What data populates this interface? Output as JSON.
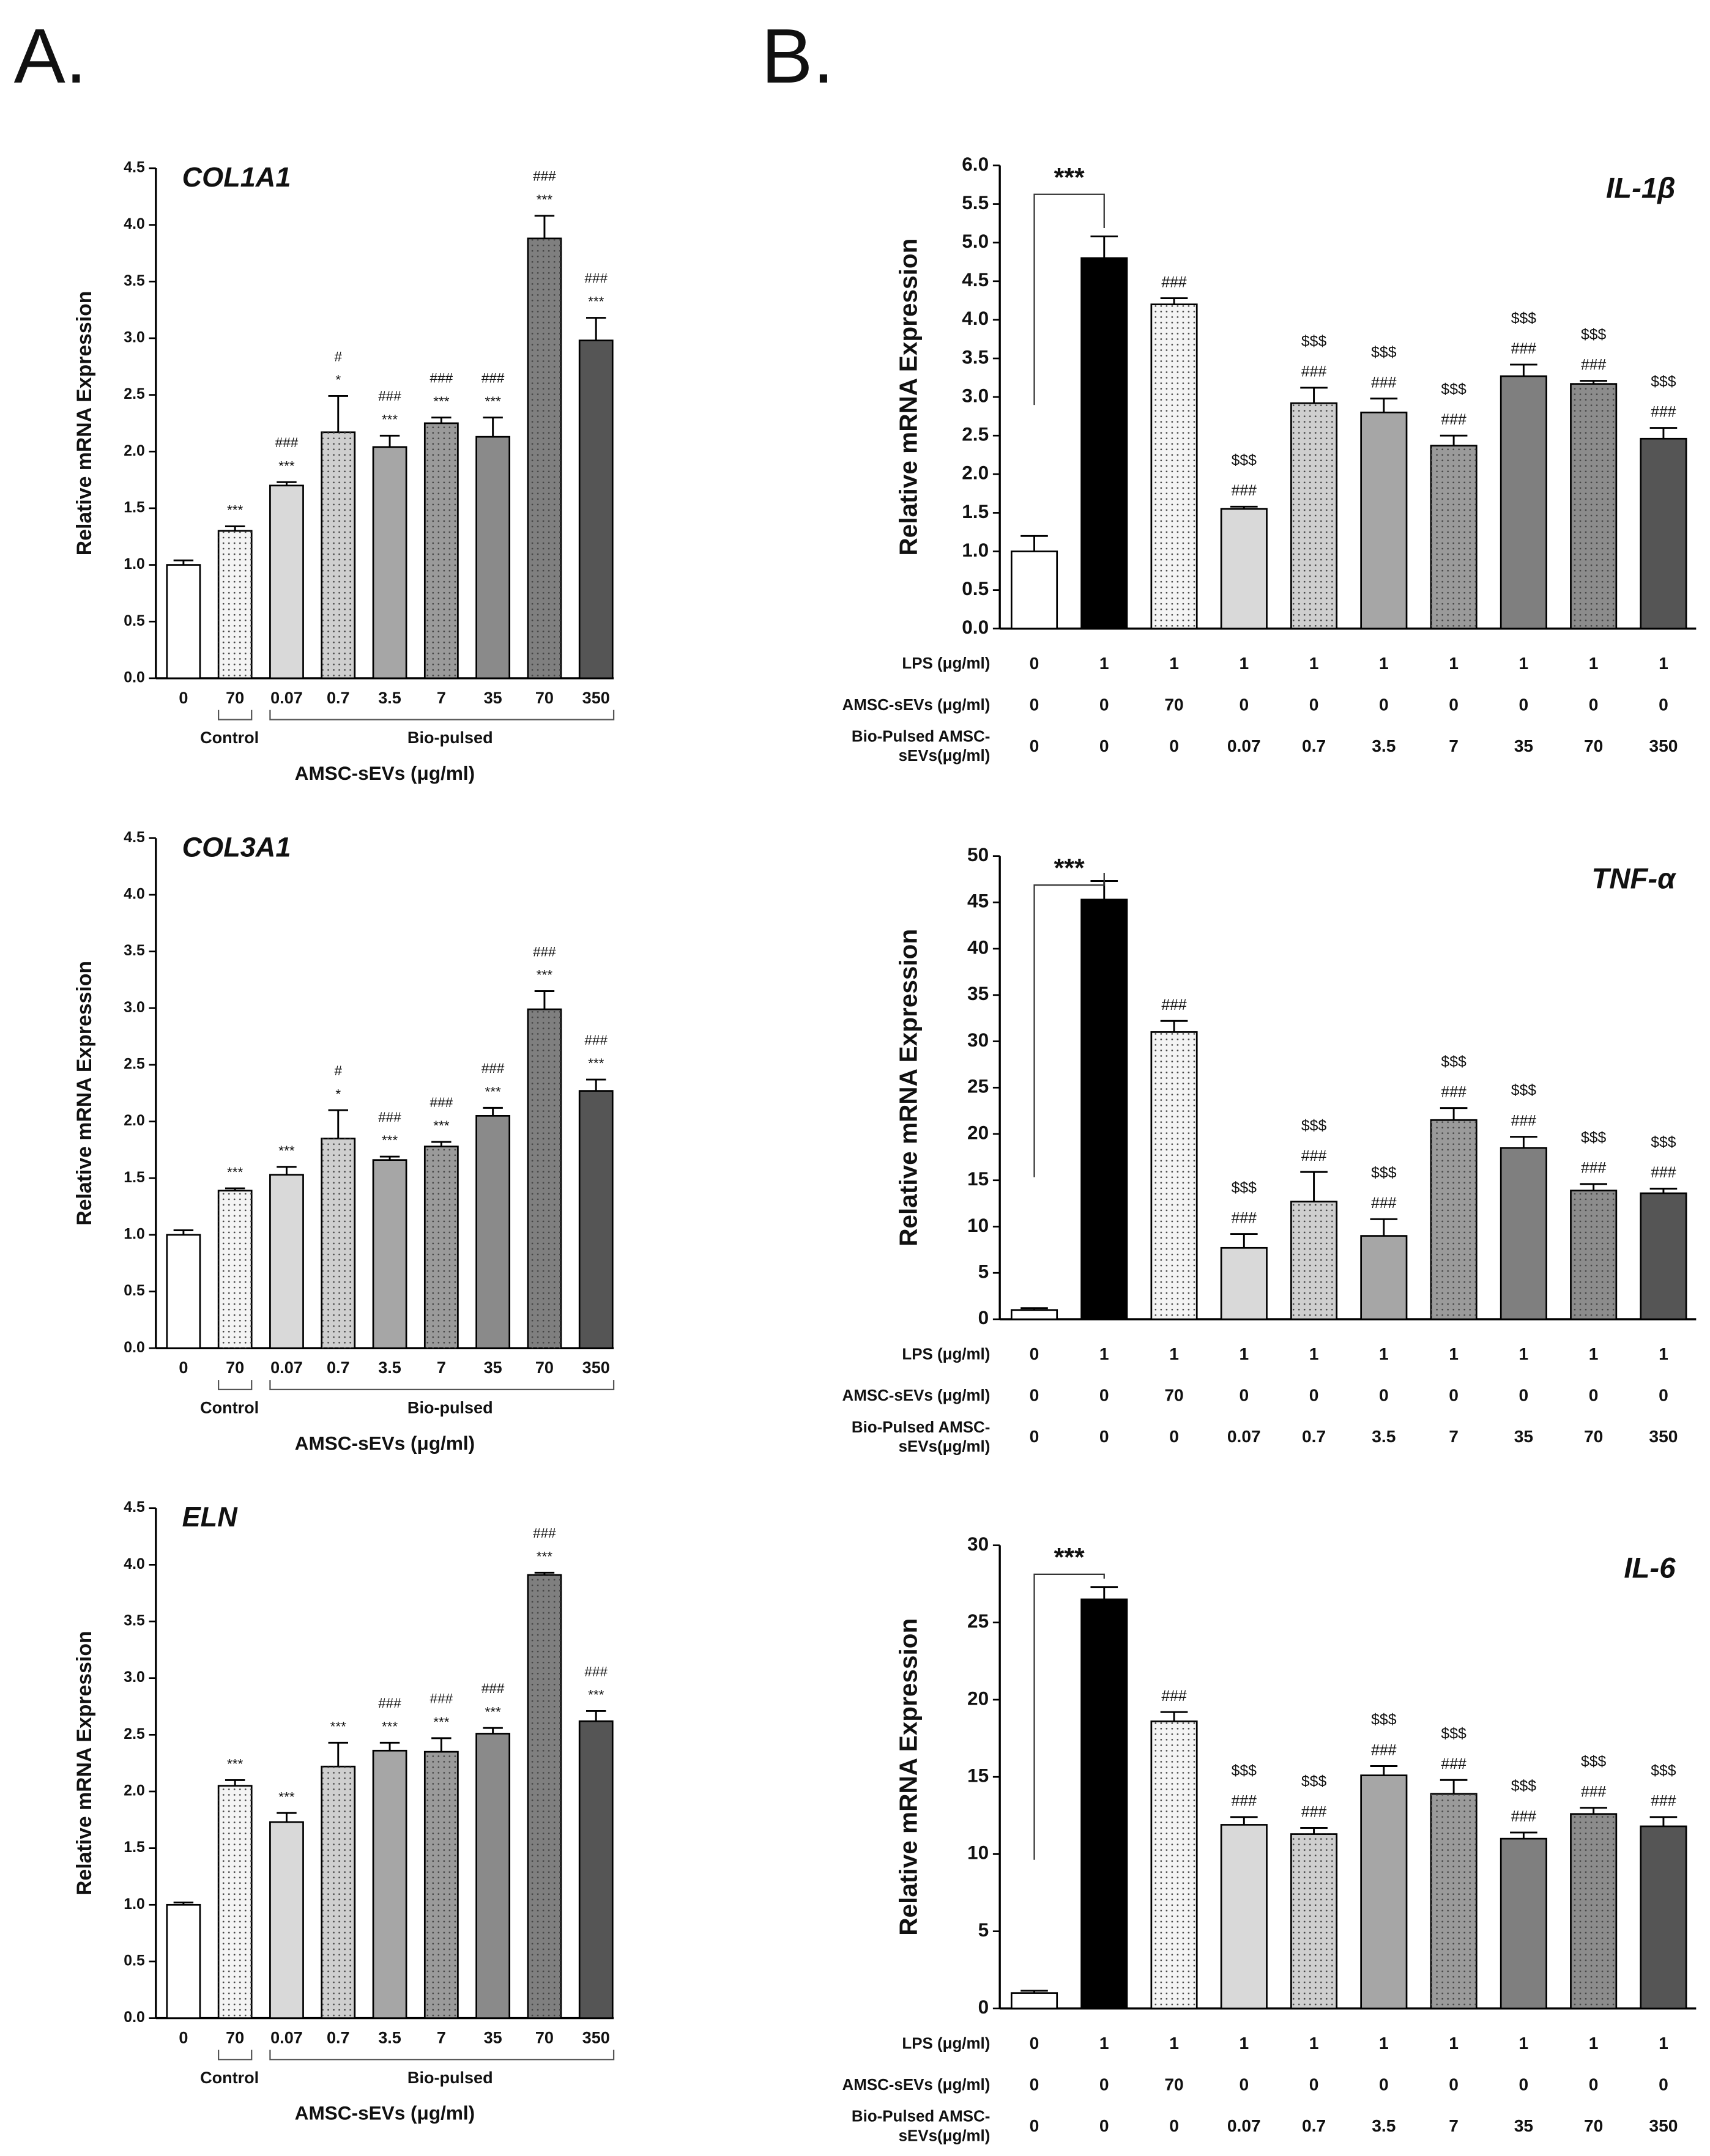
{
  "panel_labels": [
    "A.",
    "B."
  ],
  "chart_data": [
    {
      "type": "bar",
      "title": "COL1A1",
      "ylabel": "Relative mRNA Expression",
      "xlabel": "AMSC-sEVs (μg/ml)",
      "group_labels": [
        "Control",
        "Bio-pulsed"
      ],
      "categories": [
        "0",
        "70",
        "0.07",
        "0.7",
        "3.5",
        "7",
        "35",
        "70",
        "350"
      ],
      "values": [
        1.0,
        1.3,
        1.7,
        2.17,
        2.04,
        2.25,
        2.13,
        3.88,
        2.98
      ],
      "errors": [
        0.04,
        0.04,
        0.03,
        0.32,
        0.1,
        0.05,
        0.17,
        0.2,
        0.2
      ],
      "annotations": [
        [],
        [
          "***"
        ],
        [
          "###",
          "***"
        ],
        [
          "#",
          "*"
        ],
        [
          "###",
          "***"
        ],
        [
          "###",
          "***"
        ],
        [
          "###",
          "***"
        ],
        [
          "###",
          "***"
        ],
        [
          "###",
          "***"
        ]
      ],
      "colors": [
        "#ffffff",
        "#f4f4f4",
        "#d9d9d9",
        "#cfcfcf",
        "#a6a6a6",
        "#9a9a9a",
        "#8a8a8a",
        "#7f7f7f",
        "#555555"
      ],
      "patterns": [
        "solid",
        "dots",
        "solid",
        "dots",
        "solid",
        "dots",
        "solid",
        "dots",
        "solid"
      ],
      "ylim": [
        0,
        4.5
      ],
      "yticks": [
        {
          "value": 0,
          "label": "0.0"
        },
        0.5,
        {
          "value": 1,
          "label": "1.0"
        },
        1.5,
        {
          "value": 2,
          "label": "2.0"
        },
        2.5,
        {
          "value": 3,
          "label": "3.0"
        },
        3.5,
        {
          "value": 4,
          "label": "4.0"
        },
        4.5
      ]
    },
    {
      "type": "bar",
      "title": "COL3A1",
      "ylabel": "Relative mRNA Expression",
      "xlabel": "AMSC-sEVs (μg/ml)",
      "group_labels": [
        "Control",
        "Bio-pulsed"
      ],
      "categories": [
        "0",
        "70",
        "0.07",
        "0.7",
        "3.5",
        "7",
        "35",
        "70",
        "350"
      ],
      "values": [
        1.0,
        1.39,
        1.53,
        1.85,
        1.66,
        1.78,
        2.05,
        2.99,
        2.27
      ],
      "errors": [
        0.04,
        0.02,
        0.07,
        0.25,
        0.03,
        0.04,
        0.07,
        0.16,
        0.1
      ],
      "annotations": [
        [],
        [
          "***"
        ],
        [
          "***"
        ],
        [
          "#",
          "*"
        ],
        [
          "###",
          "***"
        ],
        [
          "###",
          "***"
        ],
        [
          "###",
          "***"
        ],
        [
          "###",
          "***"
        ],
        [
          "###",
          "***"
        ]
      ],
      "colors": [
        "#ffffff",
        "#f4f4f4",
        "#d9d9d9",
        "#cfcfcf",
        "#a6a6a6",
        "#9a9a9a",
        "#8a8a8a",
        "#7f7f7f",
        "#555555"
      ],
      "patterns": [
        "solid",
        "dots",
        "solid",
        "dots",
        "solid",
        "dots",
        "solid",
        "dots",
        "solid"
      ],
      "ylim": [
        0,
        4.5
      ],
      "yticks": [
        {
          "value": 0,
          "label": "0.0"
        },
        0.5,
        {
          "value": 1,
          "label": "1.0"
        },
        1.5,
        {
          "value": 2,
          "label": "2.0"
        },
        2.5,
        {
          "value": 3,
          "label": "3.0"
        },
        3.5,
        {
          "value": 4,
          "label": "4.0"
        },
        4.5
      ]
    },
    {
      "type": "bar",
      "title": "ELN",
      "ylabel": "Relative mRNA Expression",
      "xlabel": "AMSC-sEVs (μg/ml)",
      "group_labels": [
        "Control",
        "Bio-pulsed"
      ],
      "categories": [
        "0",
        "70",
        "0.07",
        "0.7",
        "3.5",
        "7",
        "35",
        "70",
        "350"
      ],
      "values": [
        1.0,
        2.05,
        1.73,
        2.22,
        2.36,
        2.35,
        2.51,
        3.91,
        2.62
      ],
      "errors": [
        0.02,
        0.05,
        0.08,
        0.21,
        0.07,
        0.12,
        0.05,
        0.02,
        0.09
      ],
      "annotations": [
        [],
        [
          "***"
        ],
        [
          "***"
        ],
        [
          "***"
        ],
        [
          "###",
          "***"
        ],
        [
          "###",
          "***"
        ],
        [
          "###",
          "***"
        ],
        [
          "###",
          "***"
        ],
        [
          "###",
          "***"
        ]
      ],
      "colors": [
        "#ffffff",
        "#f4f4f4",
        "#d9d9d9",
        "#cfcfcf",
        "#a6a6a6",
        "#9a9a9a",
        "#8a8a8a",
        "#7f7f7f",
        "#555555"
      ],
      "patterns": [
        "solid",
        "dots",
        "solid",
        "dots",
        "solid",
        "dots",
        "solid",
        "dots",
        "solid"
      ],
      "ylim": [
        0,
        4.5
      ],
      "yticks": [
        {
          "value": 0,
          "label": "0.0"
        },
        0.5,
        {
          "value": 1,
          "label": "1.0"
        },
        1.5,
        {
          "value": 2,
          "label": "2.0"
        },
        2.5,
        {
          "value": 3,
          "label": "3.0"
        },
        3.5,
        {
          "value": 4,
          "label": "4.0"
        },
        4.5
      ]
    },
    {
      "type": "bar",
      "title": "IL-1β",
      "ylabel": "Relative mRNA Expression",
      "bracket_label": "***",
      "values": [
        1.0,
        4.8,
        4.2,
        1.55,
        2.92,
        2.8,
        2.37,
        3.27,
        3.17,
        2.46
      ],
      "errors": [
        0.2,
        0.28,
        0.08,
        0.03,
        0.2,
        0.18,
        0.13,
        0.15,
        0.04,
        0.14
      ],
      "annotations": [
        [],
        [],
        [
          "###"
        ],
        [
          "$$$",
          "###"
        ],
        [
          "$$$",
          "###"
        ],
        [
          "$$$",
          "###"
        ],
        [
          "$$$",
          "###"
        ],
        [
          "$$$",
          "###"
        ],
        [
          "$$$",
          "###"
        ],
        [
          "$$$",
          "###"
        ]
      ],
      "colors": [
        "#ffffff",
        "#000000",
        "#f4f4f4",
        "#d9d9d9",
        "#cfcfcf",
        "#a6a6a6",
        "#9a9a9a",
        "#7f7f7f",
        "#8c8c8c",
        "#555555"
      ],
      "patterns": [
        "solid",
        "solid",
        "dots",
        "solid",
        "dots",
        "solid",
        "dots",
        "solid",
        "dots",
        "solid"
      ],
      "table": [
        {
          "label": [
            "LPS (μg/ml)"
          ],
          "cells": [
            "0",
            "1",
            "1",
            "1",
            "1",
            "1",
            "1",
            "1",
            "1",
            "1"
          ]
        },
        {
          "label": [
            "AMSC-sEVs (μg/ml)"
          ],
          "cells": [
            "0",
            "0",
            "70",
            "0",
            "0",
            "0",
            "0",
            "0",
            "0",
            "0"
          ]
        },
        {
          "label": [
            "Bio-Pulsed AMSC-",
            "sEVs(μg/ml)"
          ],
          "cells": [
            "0",
            "0",
            "0",
            "0.07",
            "0.7",
            "3.5",
            "7",
            "35",
            "70",
            "350"
          ]
        }
      ],
      "ylim": [
        0,
        6
      ],
      "yticks": [
        {
          "value": 0,
          "label": "0.0"
        },
        0.5,
        {
          "value": 1,
          "label": "1.0"
        },
        1.5,
        {
          "value": 2,
          "label": "2.0"
        },
        2.5,
        {
          "value": 3,
          "label": "3.0"
        },
        3.5,
        {
          "value": 4,
          "label": "4.0"
        },
        4.5,
        {
          "value": 5,
          "label": "5.0"
        },
        5.5,
        {
          "value": 6,
          "label": "6.0"
        }
      ]
    },
    {
      "type": "bar",
      "title": "TNF-α",
      "ylabel": "Relative mRNA Expression",
      "bracket_label": "***",
      "values": [
        1.0,
        45.3,
        31.0,
        7.7,
        12.7,
        9.0,
        21.5,
        18.5,
        13.9,
        13.6
      ],
      "errors": [
        0.2,
        2.0,
        1.2,
        1.5,
        3.2,
        1.8,
        1.3,
        1.2,
        0.7,
        0.5
      ],
      "annotations": [
        [],
        [],
        [
          "###"
        ],
        [
          "$$$",
          "###"
        ],
        [
          "$$$",
          "###"
        ],
        [
          "$$$",
          "###"
        ],
        [
          "$$$",
          "###"
        ],
        [
          "$$$",
          "###"
        ],
        [
          "$$$",
          "###"
        ],
        [
          "$$$",
          "###"
        ]
      ],
      "colors": [
        "#ffffff",
        "#000000",
        "#f4f4f4",
        "#d9d9d9",
        "#cfcfcf",
        "#a6a6a6",
        "#9a9a9a",
        "#7f7f7f",
        "#8c8c8c",
        "#555555"
      ],
      "patterns": [
        "solid",
        "solid",
        "dots",
        "solid",
        "dots",
        "solid",
        "dots",
        "solid",
        "dots",
        "solid"
      ],
      "table": [
        {
          "label": [
            "LPS (μg/ml)"
          ],
          "cells": [
            "0",
            "1",
            "1",
            "1",
            "1",
            "1",
            "1",
            "1",
            "1",
            "1"
          ]
        },
        {
          "label": [
            "AMSC-sEVs (μg/ml)"
          ],
          "cells": [
            "0",
            "0",
            "70",
            "0",
            "0",
            "0",
            "0",
            "0",
            "0",
            "0"
          ]
        },
        {
          "label": [
            "Bio-Pulsed AMSC-",
            "sEVs(μg/ml)"
          ],
          "cells": [
            "0",
            "0",
            "0",
            "0.07",
            "0.7",
            "3.5",
            "7",
            "35",
            "70",
            "350"
          ]
        }
      ],
      "ylim": [
        0,
        50
      ],
      "yticks": [
        0,
        5,
        10,
        15,
        20,
        25,
        30,
        35,
        40,
        45,
        50
      ]
    },
    {
      "type": "bar",
      "title": "IL-6",
      "ylabel": "Relative mRNA Expression",
      "bracket_label": "***",
      "values": [
        1.0,
        26.5,
        18.6,
        11.9,
        11.3,
        15.1,
        13.9,
        11.0,
        12.6,
        11.8
      ],
      "errors": [
        0.15,
        0.8,
        0.6,
        0.5,
        0.4,
        0.6,
        0.9,
        0.4,
        0.4,
        0.6
      ],
      "annotations": [
        [],
        [],
        [
          "###"
        ],
        [
          "$$$",
          "###"
        ],
        [
          "$$$",
          "###"
        ],
        [
          "$$$",
          "###"
        ],
        [
          "$$$",
          "###"
        ],
        [
          "$$$",
          "###"
        ],
        [
          "$$$",
          "###"
        ],
        [
          "$$$",
          "###"
        ]
      ],
      "colors": [
        "#ffffff",
        "#000000",
        "#f4f4f4",
        "#d9d9d9",
        "#cfcfcf",
        "#a6a6a6",
        "#9a9a9a",
        "#7f7f7f",
        "#8c8c8c",
        "#555555"
      ],
      "patterns": [
        "solid",
        "solid",
        "dots",
        "solid",
        "dots",
        "solid",
        "dots",
        "solid",
        "dots",
        "solid"
      ],
      "table": [
        {
          "label": [
            "LPS (μg/ml)"
          ],
          "cells": [
            "0",
            "1",
            "1",
            "1",
            "1",
            "1",
            "1",
            "1",
            "1",
            "1"
          ]
        },
        {
          "label": [
            "AMSC-sEVs (μg/ml)"
          ],
          "cells": [
            "0",
            "0",
            "70",
            "0",
            "0",
            "0",
            "0",
            "0",
            "0",
            "0"
          ]
        },
        {
          "label": [
            "Bio-Pulsed AMSC-",
            "sEVs(μg/ml)"
          ],
          "cells": [
            "0",
            "0",
            "0",
            "0.07",
            "0.7",
            "3.5",
            "7",
            "35",
            "70",
            "350"
          ]
        }
      ],
      "ylim": [
        0,
        30
      ],
      "yticks": [
        0,
        5,
        10,
        15,
        20,
        25,
        30
      ]
    }
  ]
}
